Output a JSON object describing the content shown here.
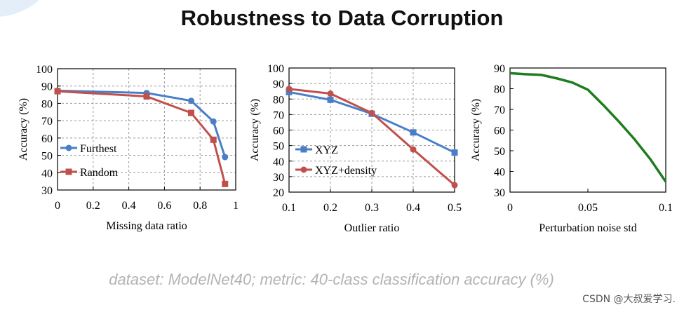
{
  "title": "Robustness to Data Corruption",
  "caption": "dataset: ModelNet40; metric: 40-class classification accuracy (%)",
  "watermark": "CSDN @大叔爱学习.",
  "chart_data": [
    {
      "type": "line",
      "xlabel": "Missing data ratio",
      "ylabel": "Accuracy (%)",
      "xlim": [
        0,
        1
      ],
      "ylim": [
        30,
        100
      ],
      "xticks": [
        "0",
        "0.2",
        "0.4",
        "0.6",
        "0.8",
        "1"
      ],
      "yticks": [
        "30",
        "40",
        "50",
        "60",
        "70",
        "80",
        "90",
        "100"
      ],
      "grid": true,
      "legend_position": "lower-left",
      "series": [
        {
          "name": "Furthest",
          "color": "#4a7fc8",
          "marker": "circle",
          "x": [
            0,
            0.5,
            0.75,
            0.875,
            0.94
          ],
          "y": [
            87.3,
            86,
            81.5,
            69.5,
            49
          ]
        },
        {
          "name": "Random",
          "color": "#c0504d",
          "marker": "square",
          "x": [
            0,
            0.5,
            0.75,
            0.875,
            0.94
          ],
          "y": [
            87,
            84,
            74.5,
            59,
            33.5
          ]
        }
      ]
    },
    {
      "type": "line",
      "xlabel": "Outlier ratio",
      "ylabel": "Accuracy (%)",
      "xlim": [
        0.1,
        0.5
      ],
      "ylim": [
        20,
        100
      ],
      "xticks": [
        "0.1",
        "0.2",
        "0.3",
        "0.4",
        "0.5"
      ],
      "yticks": [
        "20",
        "30",
        "40",
        "50",
        "60",
        "70",
        "80",
        "90",
        "100"
      ],
      "grid": true,
      "legend_position": "lower-left",
      "series": [
        {
          "name": "XYZ",
          "color": "#4a7fc8",
          "marker": "square",
          "x": [
            0.1,
            0.2,
            0.3,
            0.4,
            0.5
          ],
          "y": [
            84.5,
            79.5,
            70.5,
            58.5,
            45.5
          ]
        },
        {
          "name": "XYZ+density",
          "color": "#c0504d",
          "marker": "circle",
          "x": [
            0.1,
            0.2,
            0.3,
            0.4,
            0.5
          ],
          "y": [
            86.5,
            83.5,
            71,
            47.5,
            24.5
          ]
        }
      ]
    },
    {
      "type": "line",
      "xlabel": "Perturbation noise std",
      "ylabel": "Accuracy (%)",
      "xlim": [
        0,
        0.1
      ],
      "ylim": [
        30,
        90
      ],
      "xticks": [
        "0",
        "0.05",
        "0.1"
      ],
      "yticks": [
        "30",
        "40",
        "50",
        "60",
        "70",
        "80",
        "90"
      ],
      "grid": false,
      "series": [
        {
          "name": "Accuracy",
          "color": "#1e7d1e",
          "marker": "none",
          "x": [
            0,
            0.01,
            0.02,
            0.03,
            0.04,
            0.05,
            0.06,
            0.07,
            0.08,
            0.09,
            0.1
          ],
          "y": [
            87.5,
            87,
            86.7,
            85,
            83,
            79.5,
            72,
            64,
            55.5,
            46,
            35
          ]
        }
      ]
    }
  ]
}
